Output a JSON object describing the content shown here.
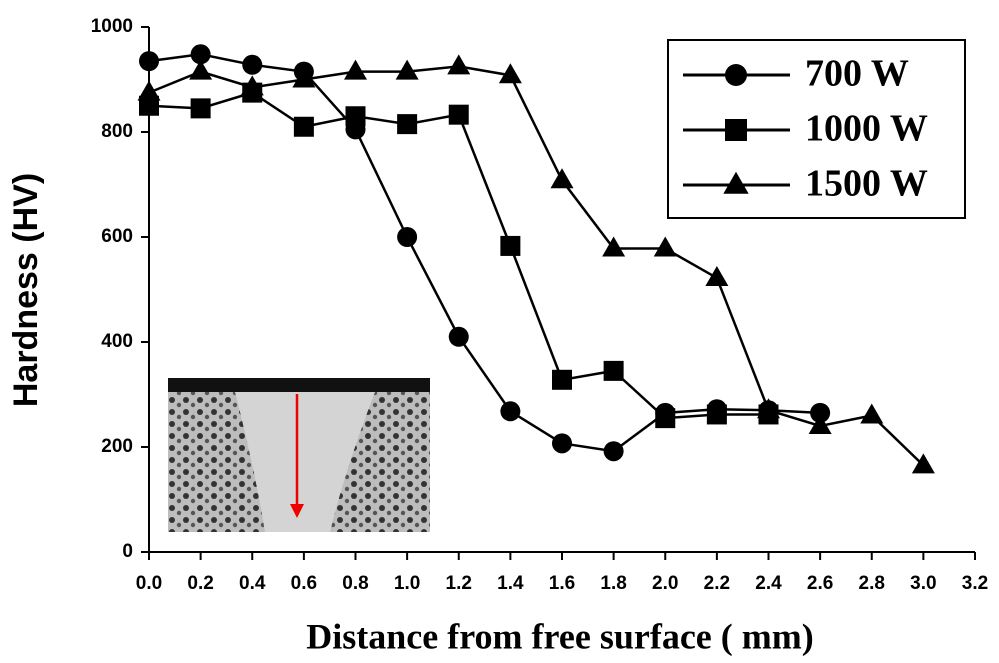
{
  "chart_data": {
    "type": "line",
    "xlabel": "Distance from free surface ( mm)",
    "ylabel": "Hardness (HV)",
    "x": [
      0,
      0.2,
      0.4,
      0.6,
      0.8,
      1.0,
      1.2,
      1.4,
      1.6,
      1.8,
      2.0,
      2.2,
      2.4,
      2.6,
      2.8,
      3.0
    ],
    "series": [
      {
        "name": "700 W",
        "color": "#000000",
        "marker": "circle",
        "values": [
          935,
          948,
          928,
          915,
          805,
          600,
          410,
          268,
          207,
          192,
          265,
          272,
          270,
          265,
          null,
          null
        ]
      },
      {
        "name": "1000 W",
        "color": "#000000",
        "marker": "square",
        "values": [
          850,
          845,
          875,
          810,
          830,
          815,
          833,
          583,
          328,
          345,
          255,
          262,
          262,
          null,
          null,
          null
        ]
      },
      {
        "name": "1500 W",
        "color": "#000000",
        "marker": "triangle",
        "values": [
          875,
          915,
          885,
          900,
          915,
          915,
          925,
          908,
          708,
          578,
          578,
          522,
          270,
          240,
          260,
          165
        ]
      }
    ],
    "xlim": [
      0,
      3.2
    ],
    "xticks": [
      {
        "value": 0,
        "label": "0.0"
      },
      0.2,
      0.4,
      0.6,
      0.8,
      {
        "value": 1,
        "label": "1.0"
      },
      1.2,
      1.4,
      1.6,
      1.8,
      {
        "value": 2,
        "label": "2.0"
      },
      2.2,
      2.4,
      2.6,
      2.8,
      {
        "value": 3,
        "label": "3.0"
      },
      3.2
    ],
    "ylim": [
      0,
      1000
    ],
    "yticks": [
      0,
      200,
      400,
      600,
      800,
      1000
    ],
    "grid": false,
    "legend": "upper right"
  }
}
